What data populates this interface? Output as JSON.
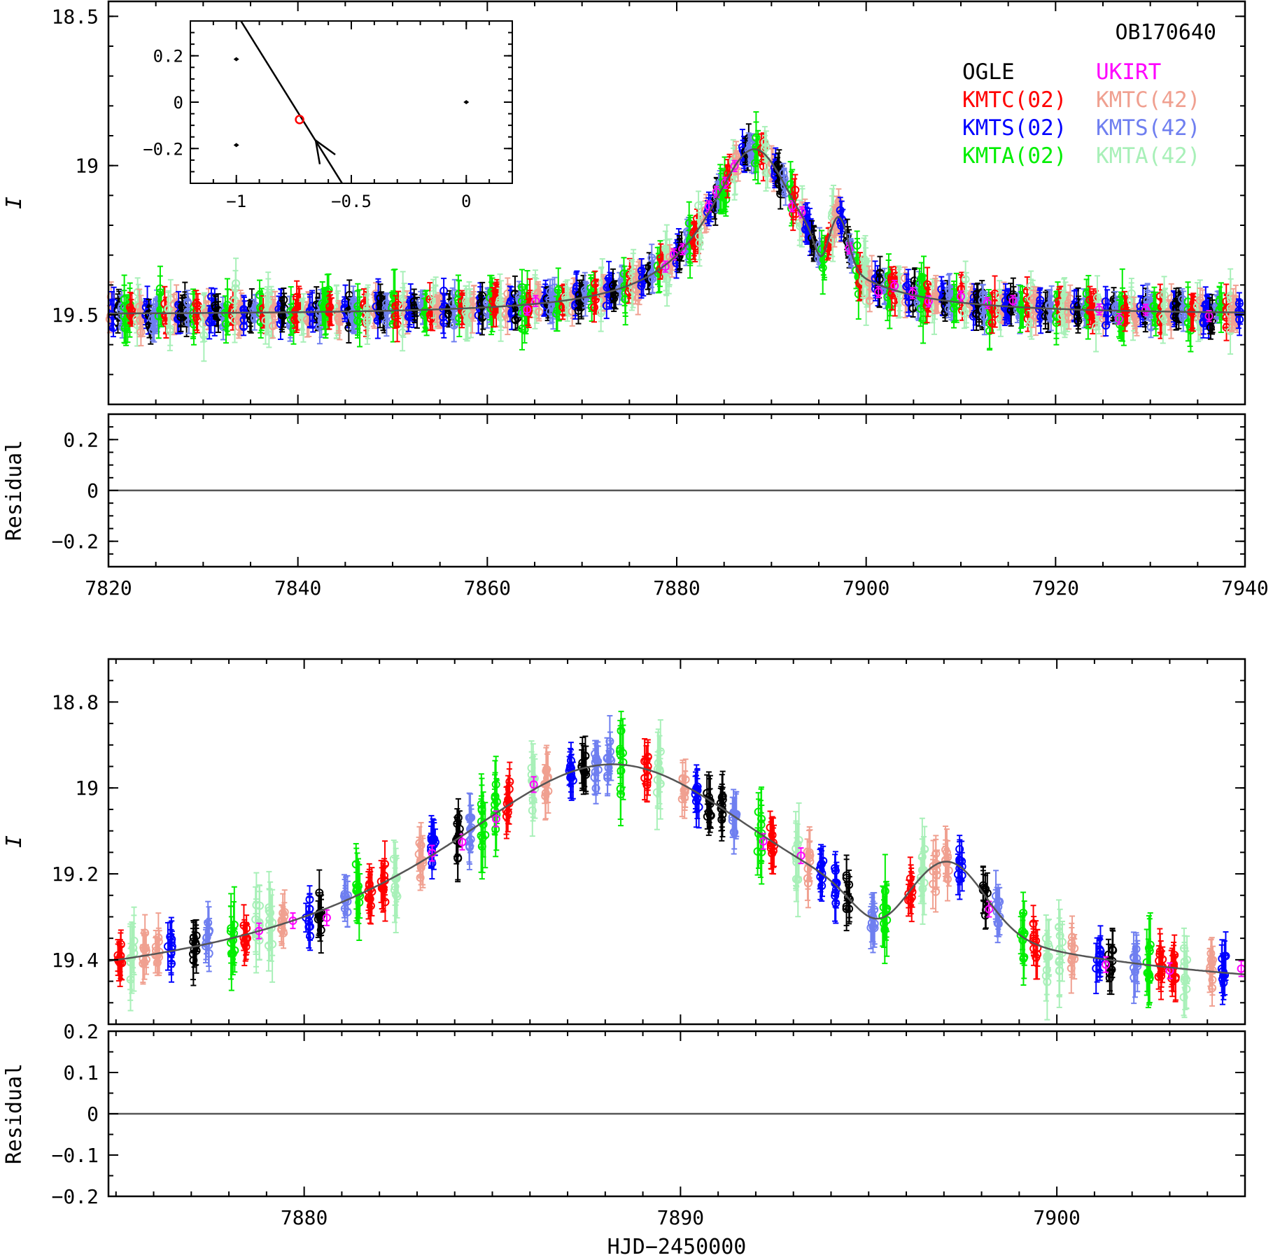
{
  "colors": {
    "OGLE": "#000000",
    "UKIRT": "#ff00ff",
    "KMTC02": "#ff0000",
    "KMTC42": "#f0a090",
    "KMTS02": "#0000ff",
    "KMTS42": "#6f7ff0",
    "KMTA02": "#00ee00",
    "KMTA42": "#a8f0b8",
    "model": "#555555"
  },
  "chart_data": [
    {
      "id": "top-light-curve",
      "type": "scatter",
      "title": "OB170640",
      "xlabel": "",
      "ylabel": "I",
      "xlim": [
        7820,
        7940
      ],
      "ylim": [
        19.8,
        18.45
      ],
      "y_reversed": true,
      "xticks": [
        7820,
        7840,
        7860,
        7880,
        7900,
        7920,
        7940
      ],
      "yticks": [
        18.5,
        19,
        19.5
      ],
      "ytick_labels": [
        "18.5",
        "19",
        "19.5"
      ],
      "legend_position": "top-right",
      "legend": [
        {
          "name": "OGLE",
          "key": "OGLE"
        },
        {
          "name": "UKIRT",
          "key": "UKIRT"
        },
        {
          "name": "KMTC(02)",
          "key": "KMTC02"
        },
        {
          "name": "KMTC(42)",
          "key": "KMTC42"
        },
        {
          "name": "KMTS(02)",
          "key": "KMTS02"
        },
        {
          "name": "KMTS(42)",
          "key": "KMTS42"
        },
        {
          "name": "KMTA(02)",
          "key": "KMTA02"
        },
        {
          "name": "KMTA(42)",
          "key": "KMTA42"
        }
      ],
      "model_curve": {
        "baseline": 19.5,
        "peak_mag": 18.93,
        "peak_time": 7888.2,
        "width_days": 5.6,
        "bump_time": 7897.2,
        "bump_depth": 0.15,
        "bump_width_days": 1.3,
        "dip_time": 7895.2,
        "dip_depth": 0.06,
        "dip_width_days": 0.9
      },
      "inset": {
        "xlim": [
          -1.2,
          0.2
        ],
        "ylim": [
          -0.35,
          0.35
        ],
        "xticks": [
          -1,
          -0.5,
          0
        ],
        "xtick_labels": [
          "−1",
          "−0.5",
          "0"
        ],
        "yticks": [
          -0.2,
          0,
          0.2
        ],
        "ytick_labels": [
          "−0.2",
          "0",
          "0.2"
        ],
        "source_trajectory": [
          [
            -0.98,
            0.35
          ],
          [
            -0.54,
            -0.35
          ]
        ],
        "source_position": [
          -0.725,
          -0.075
        ],
        "caustics": [
          [
            -1.0,
            0.185
          ],
          [
            -1.0,
            -0.185
          ],
          [
            0.0,
            0.0
          ]
        ]
      }
    },
    {
      "id": "top-residual",
      "type": "scatter",
      "xlabel": "",
      "ylabel": "Residual",
      "xlim": [
        7820,
        7940
      ],
      "ylim": [
        -0.3,
        0.3
      ],
      "xticks": [
        7820,
        7840,
        7860,
        7880,
        7900,
        7920,
        7940
      ],
      "xtick_labels": [
        "7820",
        "7840",
        "7860",
        "7880",
        "7900",
        "7920",
        "7940"
      ],
      "yticks": [
        0.2,
        0,
        -0.2
      ],
      "ytick_labels": [
        "0.2",
        "0",
        "−0.2"
      ]
    },
    {
      "id": "zoom-light-curve",
      "type": "scatter",
      "xlabel": "",
      "ylabel": "I",
      "xlim": [
        7874.8,
        7905
      ],
      "ylim": [
        19.55,
        18.7
      ],
      "y_reversed": true,
      "xticks": [
        7880,
        7890,
        7900
      ],
      "yticks": [
        18.8,
        19,
        19.2,
        19.4
      ],
      "ytick_labels": [
        "18.8",
        "19",
        "19.2",
        "19.4"
      ]
    },
    {
      "id": "zoom-residual",
      "type": "scatter",
      "xlabel": "HJD−2450000",
      "ylabel": "Residual",
      "xlim": [
        7874.8,
        7905
      ],
      "ylim": [
        -0.2,
        0.2
      ],
      "xticks": [
        7880,
        7890,
        7900
      ],
      "xtick_labels": [
        "7880",
        "7890",
        "7900"
      ],
      "yticks": [
        0.2,
        0.1,
        0,
        -0.1,
        -0.2
      ],
      "ytick_labels": [
        "0.2",
        "0.1",
        "0",
        "−0.1",
        "−0.2"
      ]
    }
  ]
}
